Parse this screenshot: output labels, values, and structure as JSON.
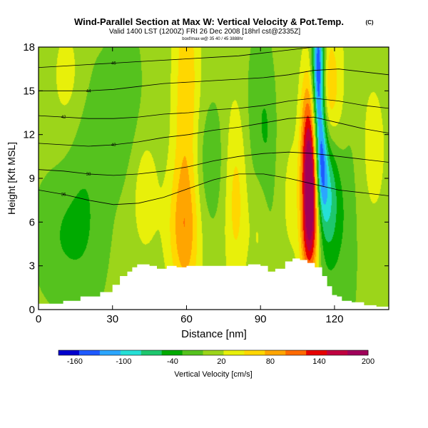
{
  "chart_data": {
    "type": "heatmap",
    "title": "Wind-Parallel Section at Max W: Vertical Velocity & Pot.Temp.",
    "title_mark": "(C)",
    "subtitle": "Valid 1400 LST (1200Z) FRI 26 Dec 2008 [18hrl cst@2335Z]",
    "subtitle2": "boxf/max-w@ 35 40 / 45 3888hr",
    "xlabel": "Distance [nm]",
    "ylabel": "Height [Kft MSL]",
    "xlim": [
      0,
      142
    ],
    "ylim": [
      0,
      18
    ],
    "xticks": [
      "0",
      "30",
      "60",
      "90",
      "120"
    ],
    "xtick_values": [
      0,
      30,
      60,
      90,
      120
    ],
    "yticks": [
      "0",
      "3",
      "6",
      "9",
      "12",
      "15",
      "18"
    ],
    "ytick_values": [
      0,
      3,
      6,
      9,
      12,
      15,
      18
    ],
    "colorbar": {
      "label": "Vertical Velocity [cm/s]",
      "range": [
        -180,
        200
      ],
      "ticks": [
        "-160",
        "-100",
        "-40",
        "20",
        "80",
        "140",
        "200"
      ],
      "tick_values": [
        -160,
        -100,
        -40,
        20,
        80,
        140,
        200
      ],
      "colors": [
        "#0000cd",
        "#1e5aff",
        "#2ba6ff",
        "#25e0d6",
        "#1ec76e",
        "#00aa00",
        "#55c21e",
        "#9cd51a",
        "#e8f00a",
        "#ffd700",
        "#ffa500",
        "#ff6a00",
        "#e60000",
        "#c00040",
        "#a0005a"
      ]
    },
    "terrain": [
      [
        0,
        0.4
      ],
      [
        10,
        0.6
      ],
      [
        17,
        0.9
      ],
      [
        22,
        0.9
      ],
      [
        25,
        1.2
      ],
      [
        30,
        1.7
      ],
      [
        33,
        2.3
      ],
      [
        36,
        2.6
      ],
      [
        38,
        2.9
      ],
      [
        40,
        3.1
      ],
      [
        45,
        3.0
      ],
      [
        48,
        2.8
      ],
      [
        52,
        3.0
      ],
      [
        56,
        2.9
      ],
      [
        60,
        3.0
      ],
      [
        65,
        3.0
      ],
      [
        70,
        3.0
      ],
      [
        75,
        3.0
      ],
      [
        80,
        3.0
      ],
      [
        85,
        3.1
      ],
      [
        90,
        3.0
      ],
      [
        93,
        2.6
      ],
      [
        96,
        2.8
      ],
      [
        100,
        3.3
      ],
      [
        103,
        3.5
      ],
      [
        106,
        3.4
      ],
      [
        109,
        3.2
      ],
      [
        112,
        2.9
      ],
      [
        115,
        2.3
      ],
      [
        117,
        1.6
      ],
      [
        119,
        1.0
      ],
      [
        121,
        0.9
      ],
      [
        123,
        0.6
      ],
      [
        127,
        0.5
      ],
      [
        132,
        0.3
      ],
      [
        137,
        0.2
      ],
      [
        142,
        0.2
      ]
    ],
    "velocity_field": [
      {
        "x": 60,
        "y": 12,
        "sx": 4,
        "sy": 9,
        "w": 70
      },
      {
        "x": 58,
        "y": 5.5,
        "sx": 5,
        "sy": 3,
        "w": 45
      },
      {
        "x": 80,
        "y": 8,
        "sx": 3.5,
        "sy": 5,
        "w": 55
      },
      {
        "x": 98,
        "y": 9,
        "sx": 3,
        "sy": 7,
        "w": 40
      },
      {
        "x": 103,
        "y": 8,
        "sx": 2,
        "sy": 3,
        "w": 30
      },
      {
        "x": 110.5,
        "y": 8.2,
        "sx": 2.5,
        "sy": 3.6,
        "w": 200
      },
      {
        "x": 109,
        "y": 12,
        "sx": 2.5,
        "sy": 4,
        "w": 70
      },
      {
        "x": 109,
        "y": 4.5,
        "sx": 2.5,
        "sy": 2,
        "w": 50
      },
      {
        "x": 117,
        "y": 15,
        "sx": 3,
        "sy": 3,
        "w": 75
      },
      {
        "x": 122,
        "y": 12,
        "sx": 3,
        "sy": 6,
        "w": 45
      },
      {
        "x": 113.5,
        "y": 16,
        "sx": 1.8,
        "sy": 3.5,
        "w": -190
      },
      {
        "x": 114.5,
        "y": 10,
        "sx": 1.8,
        "sy": 2.5,
        "w": -110
      },
      {
        "x": 117,
        "y": 8,
        "sx": 4,
        "sy": 3,
        "w": -70
      },
      {
        "x": 122,
        "y": 8,
        "sx": 5,
        "sy": 6,
        "w": -50
      },
      {
        "x": 95,
        "y": 7,
        "sx": 5,
        "sy": 6,
        "w": -30
      },
      {
        "x": 92,
        "y": 13,
        "sx": 7,
        "sy": 4,
        "w": -25
      },
      {
        "x": 68,
        "y": 10,
        "sx": 6,
        "sy": 3,
        "w": -30
      },
      {
        "x": 20,
        "y": 9,
        "sx": 6,
        "sy": 6,
        "w": -25
      },
      {
        "x": 35,
        "y": 14,
        "sx": 5,
        "sy": 4,
        "w": -25
      },
      {
        "x": 12,
        "y": 16,
        "sx": 5,
        "sy": 3,
        "w": 30
      },
      {
        "x": 43,
        "y": 8,
        "sx": 4,
        "sy": 3,
        "w": 35
      },
      {
        "x": 90,
        "y": 5.5,
        "sx": 3,
        "sy": 3,
        "w": 35
      },
      {
        "x": 135,
        "y": 11,
        "sx": 6,
        "sy": 5,
        "w": 25
      },
      {
        "x": 10,
        "y": 5,
        "sx": 8,
        "sy": 3,
        "w": -30
      }
    ],
    "isentropes": [
      {
        "theta": "36",
        "y": [
          8.2,
          7.9,
          7.5,
          7.2,
          7.3,
          7.7,
          8.3,
          8.9,
          9.3,
          9.3,
          9.0,
          8.6,
          8.2,
          8.0,
          7.8
        ]
      },
      {
        "theta": "38",
        "y": [
          9.6,
          9.5,
          9.3,
          9.2,
          9.3,
          9.5,
          9.8,
          10.2,
          10.5,
          10.7,
          10.8,
          10.7,
          10.5,
          10.3,
          10.1
        ]
      },
      {
        "theta": "40",
        "y": [
          11.4,
          11.3,
          11.2,
          11.3,
          11.5,
          11.8,
          12.0,
          12.3,
          12.5,
          12.8,
          13.1,
          13.2,
          12.8,
          12.4,
          12.1
        ]
      },
      {
        "theta": "42",
        "y": [
          13.3,
          13.2,
          13.1,
          13.1,
          13.2,
          13.4,
          13.5,
          13.7,
          13.8,
          14.0,
          14.3,
          14.5,
          14.3,
          14.0,
          13.8
        ]
      },
      {
        "theta": "44",
        "y": [
          15.0,
          15.0,
          15.0,
          15.1,
          15.3,
          15.5,
          15.6,
          15.7,
          15.8,
          15.9,
          16.1,
          16.4,
          16.5,
          16.3,
          16.1
        ]
      },
      {
        "theta": "46",
        "y": [
          16.6,
          16.7,
          16.8,
          16.9,
          17.0,
          17.1,
          17.2,
          17.3,
          17.4,
          17.6,
          17.8,
          18.0,
          18.0,
          18.0,
          18.0
        ]
      }
    ]
  }
}
